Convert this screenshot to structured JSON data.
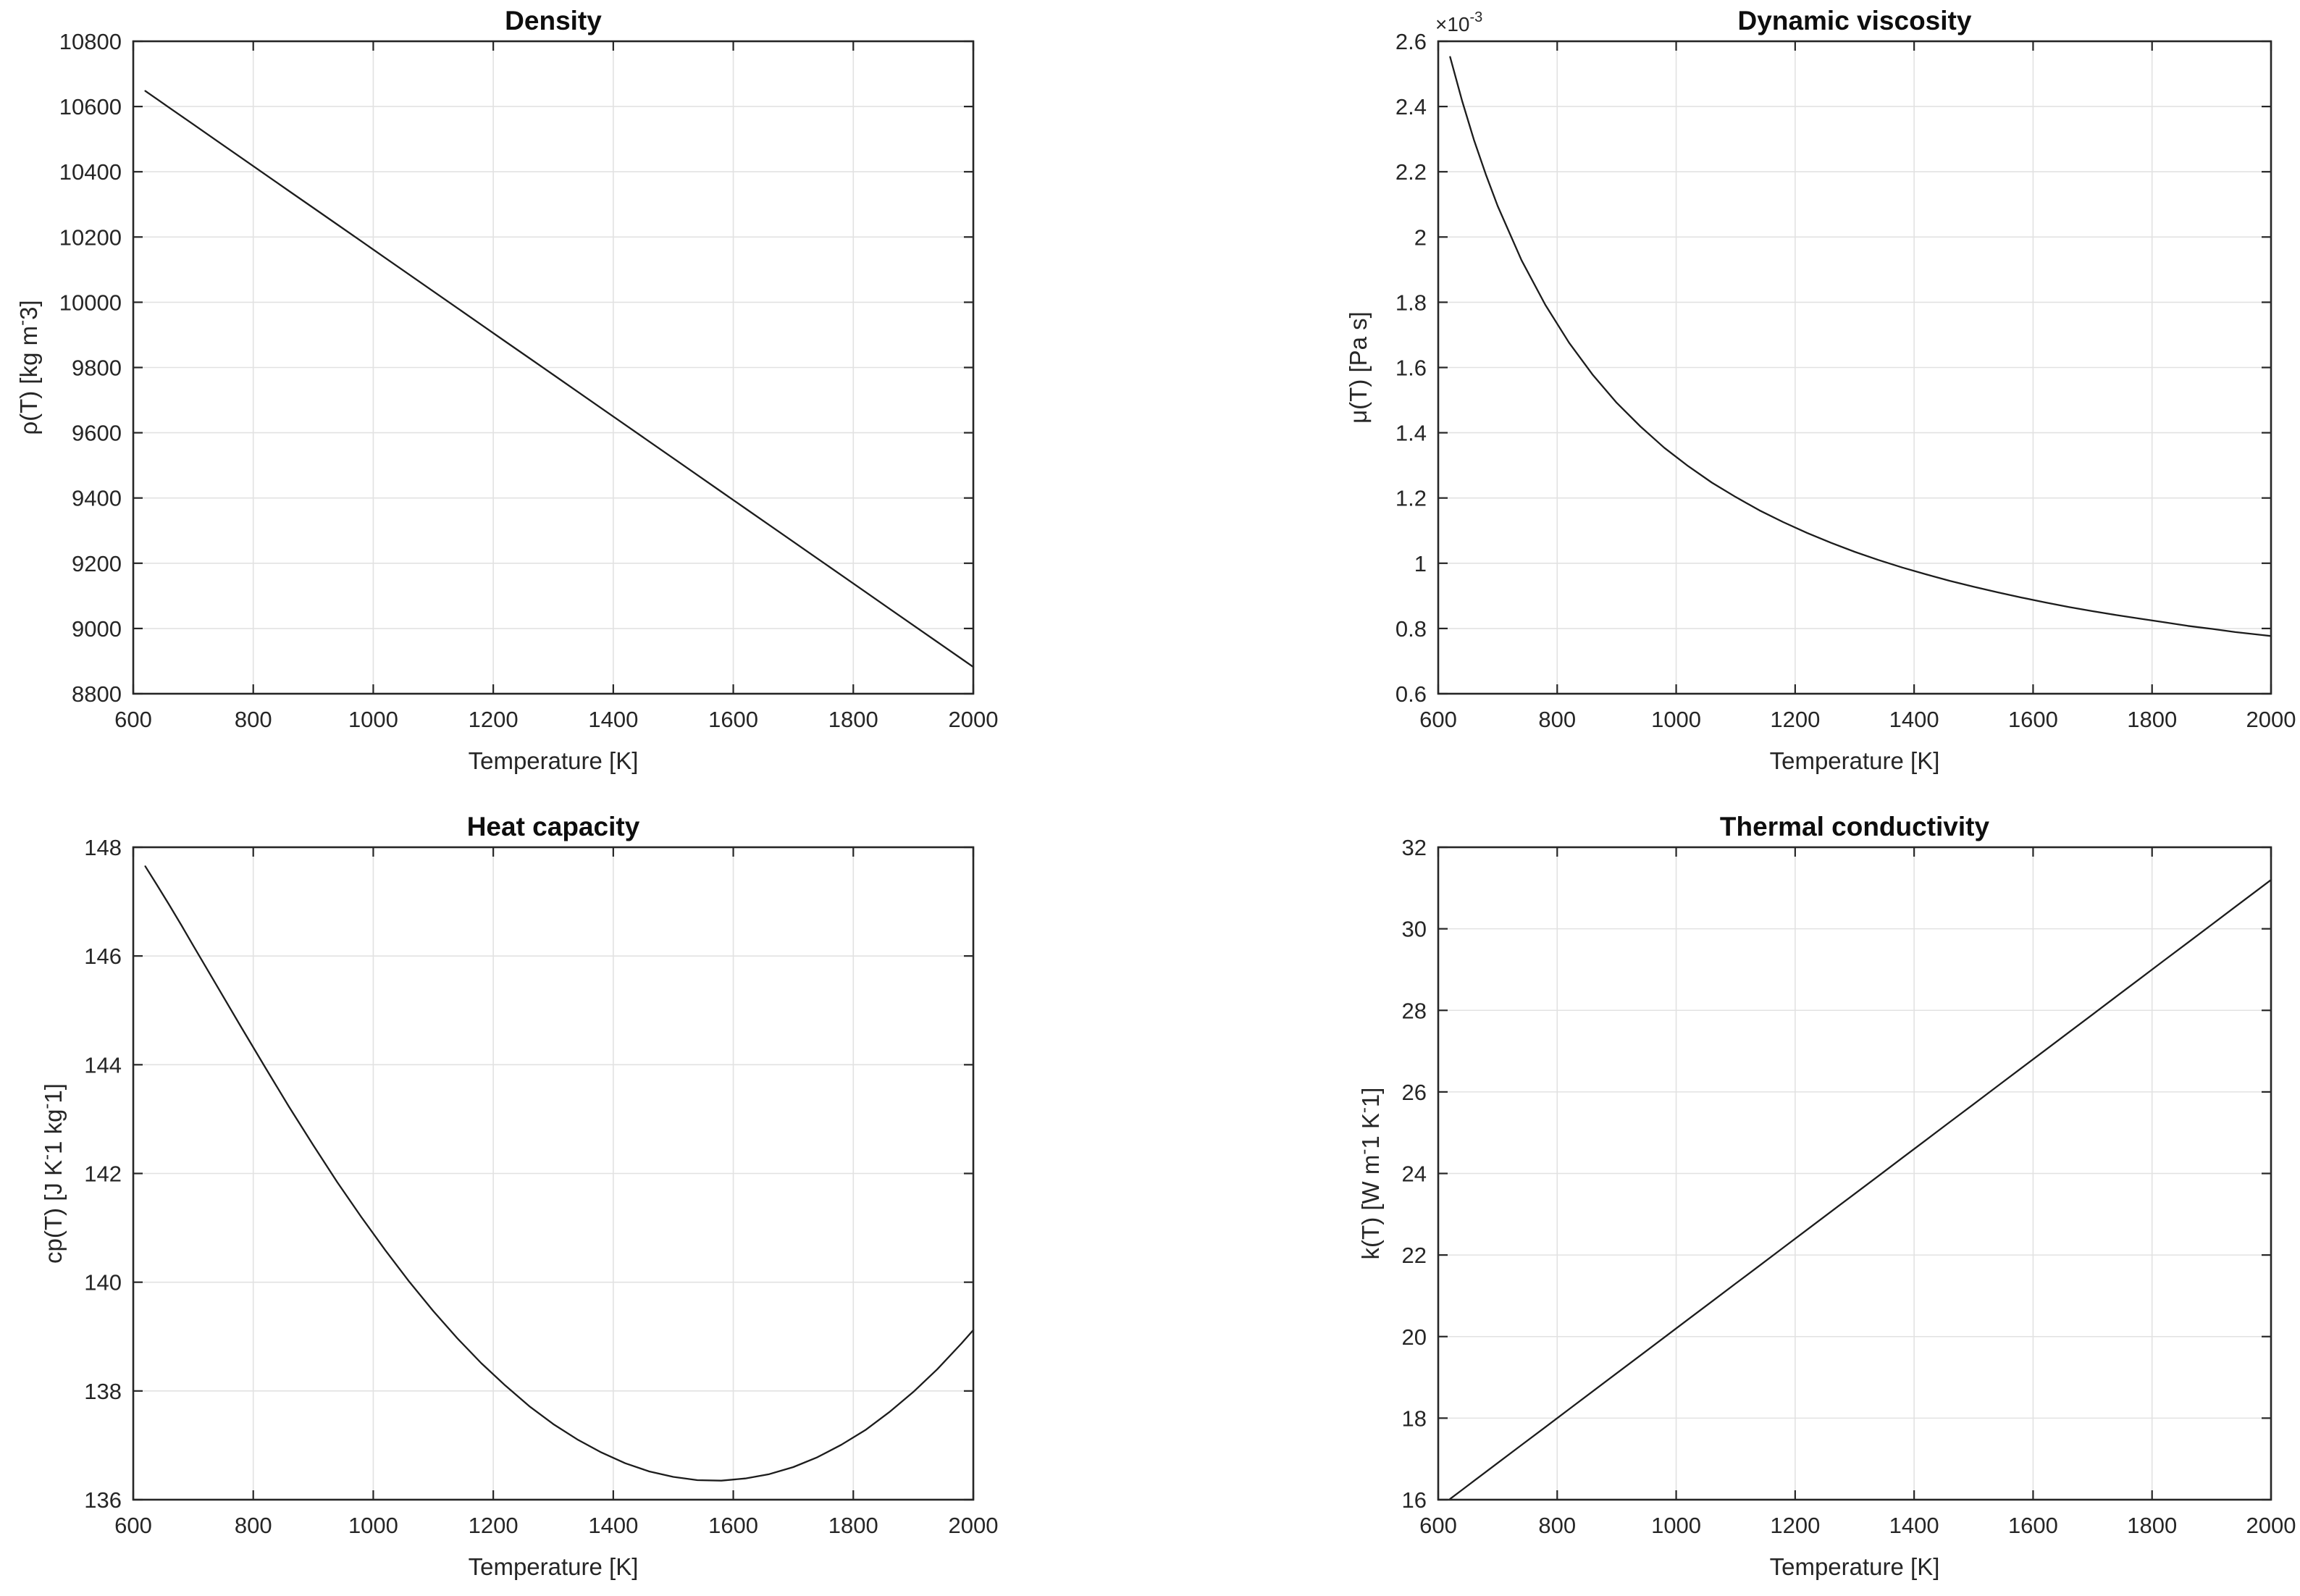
{
  "colors": {
    "background": "#ffffff",
    "axis": "#262626",
    "grid": "#e2e2e2",
    "curve": "#1c1c1c",
    "tick_label": "#262626",
    "title": "#0e0e0e"
  },
  "chart_data": [
    {
      "id": "density",
      "type": "line",
      "title": "Density",
      "xlabel": "Temperature [K]",
      "ylabel_runs": [
        {
          "t": "ρ(T) [kg m"
        },
        {
          "t": "-",
          "sup": true
        },
        {
          "t": "3]"
        }
      ],
      "exponent_runs": null,
      "xlim": [
        600,
        2000
      ],
      "ylim": [
        8800,
        10800
      ],
      "xticks": [
        600,
        800,
        1000,
        1200,
        1400,
        1600,
        1800,
        2000
      ],
      "xtick_labels": [
        "600",
        "800",
        "1000",
        "1200",
        "1400",
        "1600",
        "1800",
        "2000"
      ],
      "yticks": [
        8800,
        9000,
        9200,
        9400,
        9600,
        9800,
        10000,
        10200,
        10400,
        10600,
        10800
      ],
      "ytick_labels": [
        "8800",
        "9000",
        "9200",
        "9400",
        "9600",
        "9800",
        "10000",
        "10200",
        "10400",
        "10600",
        "10800"
      ],
      "grid": true,
      "x": [
        620,
        640,
        660,
        680,
        700,
        740,
        780,
        820,
        860,
        900,
        940,
        980,
        1020,
        1060,
        1100,
        1140,
        1180,
        1220,
        1260,
        1300,
        1340,
        1380,
        1420,
        1460,
        1500,
        1540,
        1580,
        1620,
        1660,
        1700,
        1740,
        1780,
        1820,
        1860,
        1900,
        1940,
        1980,
        2000
      ],
      "y": [
        10647.7,
        10622.1,
        10596.5,
        10570.9,
        10545.4,
        10494.2,
        10443.0,
        10391.8,
        10340.6,
        10289.5,
        10238.3,
        10187.1,
        10135.9,
        10084.7,
        10033.6,
        9982.4,
        9931.2,
        9880.0,
        9828.8,
        9777.7,
        9726.5,
        9675.3,
        9624.1,
        9572.9,
        9521.8,
        9470.6,
        9419.4,
        9368.2,
        9317.0,
        9265.9,
        9214.7,
        9163.5,
        9112.3,
        9061.1,
        9010.0,
        8958.8,
        8907.6,
        8882.0
      ]
    },
    {
      "id": "dynamic-viscosity",
      "type": "line",
      "title": "Dynamic viscosity",
      "xlabel": "Temperature [K]",
      "ylabel_runs": [
        {
          "t": "μ(T) [Pa s]"
        }
      ],
      "exponent_runs": [
        {
          "t": "×10"
        },
        {
          "t": "-3",
          "sup": true
        }
      ],
      "y_scale": "1e-3",
      "xlim": [
        600,
        2000
      ],
      "ylim": [
        0.6,
        2.6
      ],
      "xticks": [
        600,
        800,
        1000,
        1200,
        1400,
        1600,
        1800,
        2000
      ],
      "xtick_labels": [
        "600",
        "800",
        "1000",
        "1200",
        "1400",
        "1600",
        "1800",
        "2000"
      ],
      "yticks": [
        0.6,
        0.8,
        1.0,
        1.2,
        1.4,
        1.6,
        1.8,
        2.0,
        2.2,
        2.4,
        2.6
      ],
      "ytick_labels": [
        "0.6",
        "0.8",
        "1",
        "1.2",
        "1.4",
        "1.6",
        "1.8",
        "2",
        "2.2",
        "2.4",
        "2.6"
      ],
      "grid": true,
      "x": [
        620,
        640,
        660,
        680,
        700,
        740,
        780,
        820,
        860,
        900,
        940,
        980,
        1020,
        1060,
        1100,
        1140,
        1180,
        1220,
        1260,
        1300,
        1340,
        1380,
        1420,
        1460,
        1500,
        1540,
        1580,
        1620,
        1660,
        1700,
        1740,
        1780,
        1820,
        1860,
        1900,
        1940,
        1980,
        2000
      ],
      "y": [
        2.552,
        2.418,
        2.298,
        2.192,
        2.095,
        1.929,
        1.792,
        1.676,
        1.577,
        1.492,
        1.419,
        1.354,
        1.298,
        1.247,
        1.203,
        1.162,
        1.126,
        1.093,
        1.063,
        1.035,
        1.01,
        0.987,
        0.966,
        0.946,
        0.928,
        0.911,
        0.895,
        0.88,
        0.866,
        0.853,
        0.841,
        0.83,
        0.819,
        0.808,
        0.799,
        0.789,
        0.781,
        0.777
      ]
    },
    {
      "id": "heat-capacity",
      "type": "line",
      "title": "Heat capacity",
      "xlabel": "Temperature [K]",
      "ylabel_runs": [
        {
          "t": "cp(T) [J K"
        },
        {
          "t": "-",
          "sup": true
        },
        {
          "t": "1 kg"
        },
        {
          "t": "-",
          "sup": true
        },
        {
          "t": "1]"
        }
      ],
      "exponent_runs": null,
      "xlim": [
        600,
        2000
      ],
      "ylim": [
        136,
        148
      ],
      "xticks": [
        600,
        800,
        1000,
        1200,
        1400,
        1600,
        1800,
        2000
      ],
      "xtick_labels": [
        "600",
        "800",
        "1000",
        "1200",
        "1400",
        "1600",
        "1800",
        "2000"
      ],
      "yticks": [
        136,
        138,
        140,
        142,
        144,
        146,
        148
      ],
      "ytick_labels": [
        "136",
        "138",
        "140",
        "142",
        "144",
        "146",
        "148"
      ],
      "grid": true,
      "x": [
        620,
        640,
        660,
        680,
        700,
        740,
        780,
        820,
        860,
        900,
        940,
        980,
        1020,
        1060,
        1100,
        1140,
        1180,
        1220,
        1260,
        1300,
        1340,
        1380,
        1420,
        1460,
        1500,
        1540,
        1580,
        1620,
        1660,
        1700,
        1740,
        1780,
        1820,
        1860,
        1900,
        1940,
        1980,
        2000
      ],
      "y": [
        147.65,
        147.3,
        146.94,
        146.57,
        146.19,
        145.44,
        144.69,
        143.95,
        143.22,
        142.52,
        141.84,
        141.2,
        140.59,
        140.01,
        139.47,
        138.97,
        138.51,
        138.1,
        137.72,
        137.39,
        137.11,
        136.87,
        136.67,
        136.52,
        136.42,
        136.36,
        136.35,
        136.39,
        136.47,
        136.6,
        136.78,
        137.01,
        137.28,
        137.61,
        137.98,
        138.4,
        138.87,
        139.12
      ]
    },
    {
      "id": "thermal-conductivity",
      "type": "line",
      "title": "Thermal conductivity",
      "xlabel": "Temperature [K]",
      "ylabel_runs": [
        {
          "t": "k(T) [W m"
        },
        {
          "t": "-",
          "sup": true
        },
        {
          "t": "1 K"
        },
        {
          "t": "-",
          "sup": true
        },
        {
          "t": "1]"
        }
      ],
      "exponent_runs": null,
      "xlim": [
        600,
        2000
      ],
      "ylim": [
        16,
        32
      ],
      "xticks": [
        600,
        800,
        1000,
        1200,
        1400,
        1600,
        1800,
        2000
      ],
      "xtick_labels": [
        "600",
        "800",
        "1000",
        "1200",
        "1400",
        "1600",
        "1800",
        "2000"
      ],
      "yticks": [
        16,
        18,
        20,
        22,
        24,
        26,
        28,
        30,
        32
      ],
      "ytick_labels": [
        "16",
        "18",
        "20",
        "22",
        "24",
        "26",
        "28",
        "30",
        "32"
      ],
      "grid": true,
      "x": [
        620,
        640,
        660,
        680,
        700,
        740,
        780,
        820,
        860,
        900,
        940,
        980,
        1020,
        1060,
        1100,
        1140,
        1180,
        1220,
        1260,
        1300,
        1340,
        1380,
        1420,
        1460,
        1500,
        1540,
        1580,
        1620,
        1660,
        1700,
        1740,
        1780,
        1820,
        1860,
        1900,
        1940,
        1980,
        2000
      ],
      "y": [
        16.02,
        16.24,
        16.46,
        16.68,
        16.9,
        17.34,
        17.78,
        18.22,
        18.66,
        19.1,
        19.54,
        19.98,
        20.42,
        20.86,
        21.3,
        21.74,
        22.18,
        22.62,
        23.06,
        23.5,
        23.94,
        24.38,
        24.82,
        25.26,
        25.7,
        26.14,
        26.58,
        27.02,
        27.46,
        27.9,
        28.34,
        28.78,
        29.22,
        29.66,
        30.1,
        30.54,
        30.98,
        31.2
      ]
    }
  ]
}
